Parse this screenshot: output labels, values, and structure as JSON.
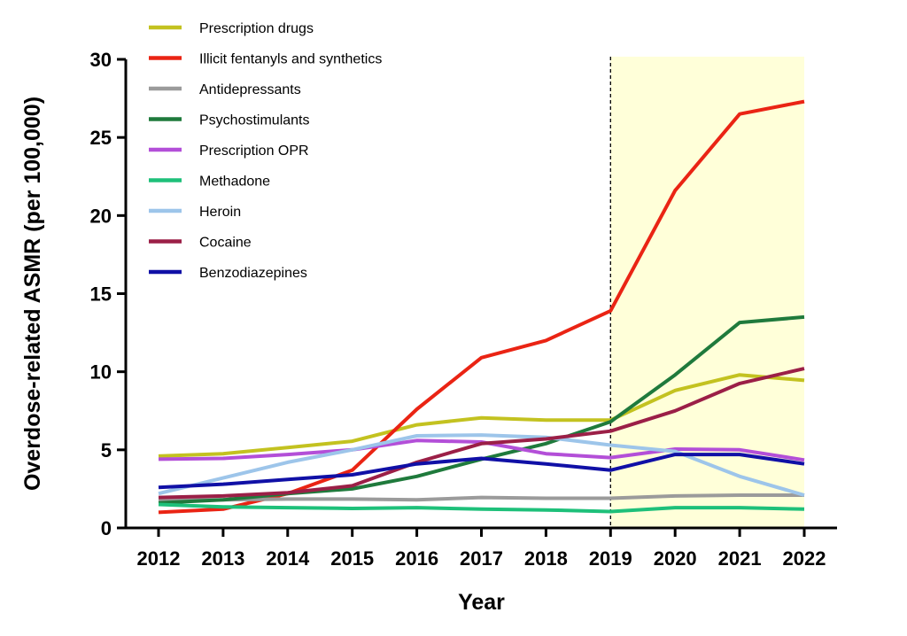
{
  "chart_data": {
    "type": "line",
    "title": "",
    "xlabel": "Year",
    "ylabel": "Overdose-related ASMR (per 100,000)",
    "ylim": [
      0,
      30
    ],
    "yticks": [
      "0",
      "5",
      "10",
      "15",
      "20",
      "25",
      "30"
    ],
    "categories": [
      "2012",
      "2013",
      "2014",
      "2015",
      "2016",
      "2017",
      "2018",
      "2019",
      "2020",
      "2021",
      "2022"
    ],
    "legend_position": "top-left",
    "grid": false,
    "annotations": {
      "reference_line_at": "2019",
      "highlight_range": [
        "2019",
        "2022"
      ],
      "highlight_color": "#ffffd9"
    },
    "series": [
      {
        "name": "Prescription drugs",
        "color": "#c3c220",
        "values": [
          4.6,
          4.75,
          5.15,
          5.55,
          6.6,
          7.05,
          6.9,
          6.9,
          8.8,
          9.8,
          9.45
        ]
      },
      {
        "name": "Illicit fentanyls and synthetics",
        "color": "#ea2414",
        "values": [
          1.0,
          1.2,
          2.2,
          3.7,
          7.6,
          10.9,
          12.0,
          13.9,
          21.6,
          26.5,
          27.3
        ]
      },
      {
        "name": "Antidepressants",
        "color": "#9b9b9b",
        "values": [
          1.8,
          1.8,
          1.85,
          1.85,
          1.8,
          1.95,
          1.9,
          1.9,
          2.05,
          2.1,
          2.1
        ]
      },
      {
        "name": "Psychostimulants",
        "color": "#1f7a3c",
        "values": [
          1.6,
          1.8,
          2.2,
          2.5,
          3.3,
          4.4,
          5.4,
          6.8,
          9.8,
          13.15,
          13.5
        ]
      },
      {
        "name": "Prescription OPR",
        "color": "#b34fd8",
        "values": [
          4.4,
          4.45,
          4.7,
          5.0,
          5.6,
          5.5,
          4.75,
          4.5,
          5.05,
          5.0,
          4.35
        ]
      },
      {
        "name": "Methadone",
        "color": "#1ec07a",
        "values": [
          1.5,
          1.35,
          1.3,
          1.25,
          1.3,
          1.2,
          1.15,
          1.05,
          1.3,
          1.3,
          1.2
        ]
      },
      {
        "name": "Heroin",
        "color": "#9dc5ea",
        "values": [
          2.2,
          3.2,
          4.2,
          5.0,
          5.9,
          5.95,
          5.8,
          5.3,
          4.9,
          3.3,
          2.1
        ]
      },
      {
        "name": "Cocaine",
        "color": "#9b1f47",
        "values": [
          1.95,
          2.05,
          2.25,
          2.7,
          4.2,
          5.4,
          5.7,
          6.2,
          7.5,
          9.25,
          10.2
        ]
      },
      {
        "name": "Benzodiazepines",
        "color": "#1010a6",
        "values": [
          2.6,
          2.8,
          3.1,
          3.4,
          4.1,
          4.45,
          4.1,
          3.7,
          4.7,
          4.7,
          4.1
        ]
      }
    ]
  }
}
